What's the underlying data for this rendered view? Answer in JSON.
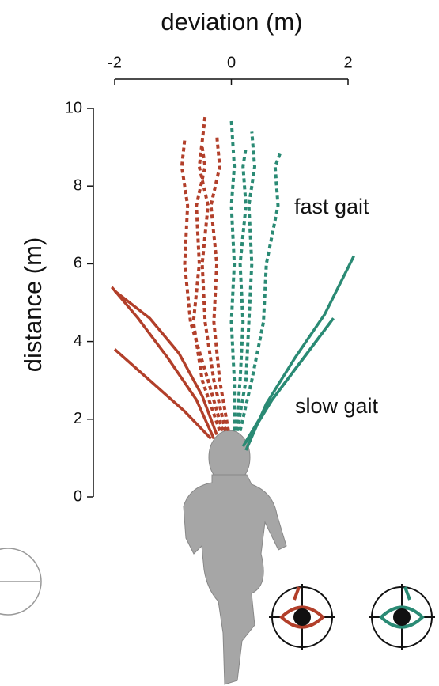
{
  "chart_data": {
    "type": "line",
    "xlabel": "deviation (m)",
    "ylabel": "distance (m)",
    "xlim": [
      -2,
      2
    ],
    "xticks": [
      -2,
      0,
      2
    ],
    "ylim": [
      0,
      10
    ],
    "yticks": [
      0,
      2,
      4,
      6,
      8,
      10
    ],
    "annotations": [
      "fast gait",
      "slow gait"
    ],
    "series": [
      {
        "color": "#b23f2a",
        "dashed": false,
        "x": [
          -0.3,
          -0.6,
          -1.1,
          -1.6,
          -2.05
        ],
        "y": [
          1.5,
          2.5,
          3.6,
          4.6,
          5.4
        ]
      },
      {
        "color": "#b23f2a",
        "dashed": false,
        "x": [
          -0.25,
          -0.5,
          -0.9,
          -1.4,
          -2.0
        ],
        "y": [
          1.6,
          2.6,
          3.7,
          4.6,
          5.3
        ]
      },
      {
        "color": "#b23f2a",
        "dashed": false,
        "x": [
          -0.35,
          -0.8,
          -1.4,
          -2.0
        ],
        "y": [
          1.5,
          2.2,
          3.0,
          3.8
        ]
      },
      {
        "color": "#2a8a74",
        "dashed": false,
        "x": [
          0.25,
          0.6,
          1.1,
          1.6,
          2.1
        ],
        "y": [
          1.2,
          2.4,
          3.6,
          4.7,
          6.2
        ]
      },
      {
        "color": "#2a8a74",
        "dashed": false,
        "x": [
          0.2,
          0.6,
          1.1,
          1.7
        ],
        "y": [
          1.3,
          2.3,
          3.3,
          4.5
        ]
      },
      {
        "color": "#2a8a74",
        "dashed": false,
        "x": [
          0.25,
          0.7,
          1.2,
          1.75
        ],
        "y": [
          1.4,
          2.5,
          3.5,
          4.6
        ]
      },
      {
        "color": "#b23f2a",
        "dashed": true,
        "x": [
          -0.1,
          -0.3,
          -0.45,
          -0.5,
          -0.4,
          -0.55,
          -0.45
        ],
        "y": [
          1.7,
          3,
          4.5,
          6,
          7.5,
          8.5,
          9.8
        ]
      },
      {
        "color": "#b23f2a",
        "dashed": true,
        "x": [
          -0.15,
          -0.4,
          -0.7,
          -0.8,
          -0.75,
          -0.85,
          -0.8
        ],
        "y": [
          1.7,
          3,
          4.5,
          6,
          7.5,
          8.5,
          9.2
        ]
      },
      {
        "color": "#b23f2a",
        "dashed": true,
        "x": [
          -0.05,
          -0.2,
          -0.3,
          -0.25,
          -0.35,
          -0.2,
          -0.25
        ],
        "y": [
          1.7,
          3,
          4.5,
          6,
          7.5,
          8.5,
          9.3
        ]
      },
      {
        "color": "#b23f2a",
        "dashed": true,
        "x": [
          -0.2,
          -0.5,
          -0.65,
          -0.55,
          -0.6,
          -0.45,
          -0.5
        ],
        "y": [
          1.7,
          3,
          4.5,
          6,
          7.5,
          8.5,
          9.0
        ]
      },
      {
        "color": "#2a8a74",
        "dashed": true,
        "x": [
          0.05,
          0.05,
          0.0,
          0.05,
          0.0,
          0.05,
          0.0
        ],
        "y": [
          1.7,
          3,
          4.5,
          6,
          7.5,
          8.5,
          9.7
        ]
      },
      {
        "color": "#2a8a74",
        "dashed": true,
        "x": [
          0.1,
          0.25,
          0.3,
          0.35,
          0.3,
          0.4,
          0.35
        ],
        "y": [
          1.7,
          3,
          4.5,
          6,
          7.5,
          8.5,
          9.4
        ]
      },
      {
        "color": "#2a8a74",
        "dashed": true,
        "x": [
          0.15,
          0.35,
          0.55,
          0.6,
          0.8,
          0.75,
          0.85
        ],
        "y": [
          1.7,
          3,
          4.5,
          6,
          7.5,
          8.5,
          8.9
        ]
      },
      {
        "color": "#2a8a74",
        "dashed": true,
        "x": [
          0.08,
          0.15,
          0.2,
          0.15,
          0.25,
          0.2,
          0.25
        ],
        "y": [
          1.7,
          3,
          4.5,
          6,
          7.5,
          8.5,
          9.0
        ]
      }
    ]
  }
}
